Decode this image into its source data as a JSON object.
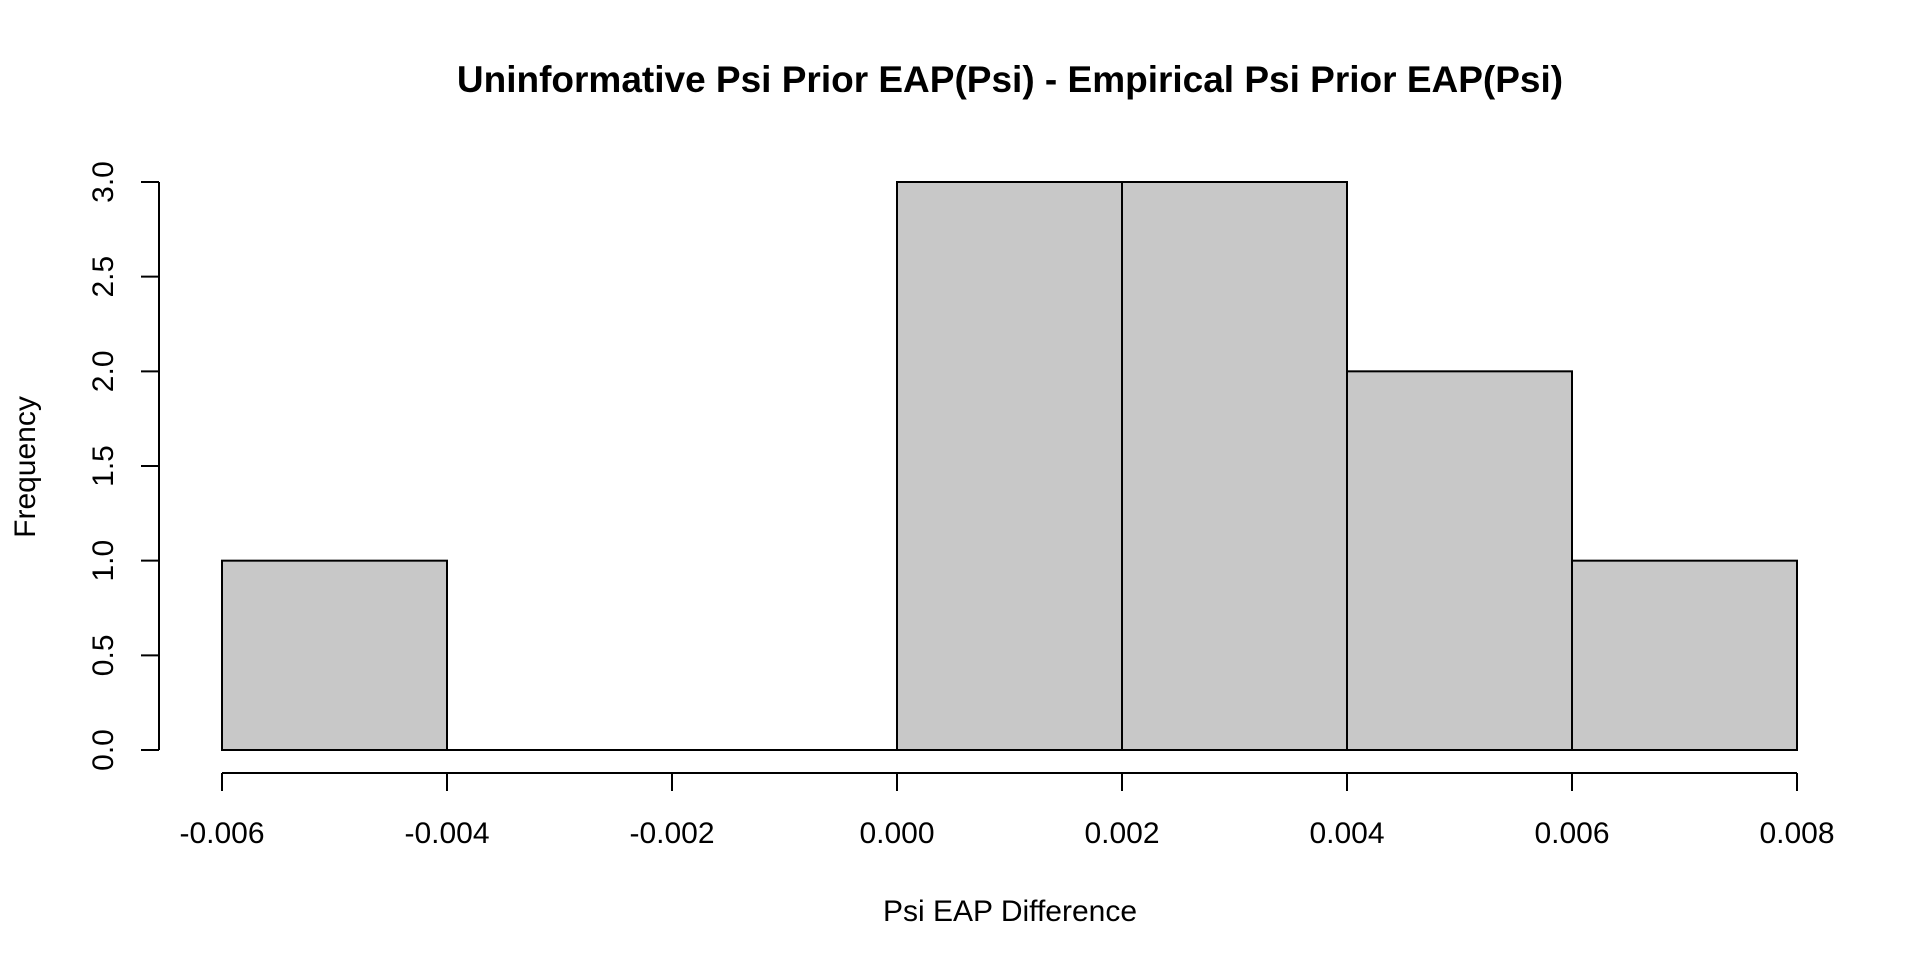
{
  "chart_data": {
    "type": "bar",
    "title": "Uninformative Psi Prior EAP(Psi) - Empirical Psi Prior EAP(Psi)",
    "xlabel": "Psi EAP Difference",
    "ylabel": "Frequency",
    "bins": [
      {
        "x0": -0.006,
        "x1": -0.004,
        "value": 1
      },
      {
        "x0": -0.004,
        "x1": -0.002,
        "value": 0
      },
      {
        "x0": -0.002,
        "x1": 0.0,
        "value": 0
      },
      {
        "x0": 0.0,
        "x1": 0.002,
        "value": 3
      },
      {
        "x0": 0.002,
        "x1": 0.004,
        "value": 3
      },
      {
        "x0": 0.004,
        "x1": 0.006,
        "value": 2
      },
      {
        "x0": 0.006,
        "x1": 0.008,
        "value": 1
      }
    ],
    "xlim": [
      -0.006,
      0.008
    ],
    "ylim": [
      0,
      3
    ],
    "x_ticks": [
      "-0.006",
      "-0.004",
      "-0.002",
      "0.000",
      "0.002",
      "0.004",
      "0.006",
      "0.008"
    ],
    "y_ticks": [
      "0.0",
      "0.5",
      "1.0",
      "1.5",
      "2.0",
      "2.5",
      "3.0"
    ],
    "bar_color": "#c8c8c8",
    "edge_color": "#000000",
    "grid": false,
    "legend": "none"
  }
}
